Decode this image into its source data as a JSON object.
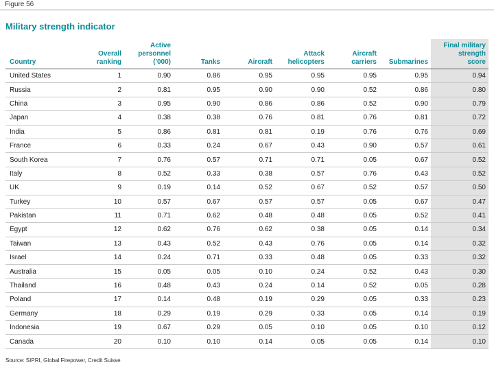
{
  "figure_label": "Figure 56",
  "title": "Military strength indicator",
  "columns": [
    "Country",
    "Overall\nranking",
    "Active\npersonnel\n('000)",
    "Tanks",
    "Aircraft",
    "Attack\nhelicopters",
    "Aircraft\ncarriers",
    "Submarines",
    "Final military\nstrength\nscore"
  ],
  "rows": [
    [
      "United States",
      "1",
      "0.90",
      "0.86",
      "0.95",
      "0.95",
      "0.95",
      "0.95",
      "0.94"
    ],
    [
      "Russia",
      "2",
      "0.81",
      "0.95",
      "0.90",
      "0.90",
      "0.52",
      "0.86",
      "0.80"
    ],
    [
      "China",
      "3",
      "0.95",
      "0.90",
      "0.86",
      "0.86",
      "0.52",
      "0.90",
      "0.79"
    ],
    [
      "Japan",
      "4",
      "0.38",
      "0.38",
      "0.76",
      "0.81",
      "0.76",
      "0.81",
      "0.72"
    ],
    [
      "India",
      "5",
      "0.86",
      "0.81",
      "0.81",
      "0.19",
      "0.76",
      "0.76",
      "0.69"
    ],
    [
      "France",
      "6",
      "0.33",
      "0.24",
      "0.67",
      "0.43",
      "0.90",
      "0.57",
      "0.61"
    ],
    [
      "South Korea",
      "7",
      "0.76",
      "0.57",
      "0.71",
      "0.71",
      "0.05",
      "0.67",
      "0.52"
    ],
    [
      "Italy",
      "8",
      "0.52",
      "0.33",
      "0.38",
      "0.57",
      "0.76",
      "0.43",
      "0.52"
    ],
    [
      "UK",
      "9",
      "0.19",
      "0.14",
      "0.52",
      "0.67",
      "0.52",
      "0.57",
      "0.50"
    ],
    [
      "Turkey",
      "10",
      "0.57",
      "0.67",
      "0.57",
      "0.57",
      "0.05",
      "0.67",
      "0.47"
    ],
    [
      "Pakistan",
      "11",
      "0.71",
      "0.62",
      "0.48",
      "0.48",
      "0.05",
      "0.52",
      "0.41"
    ],
    [
      "Egypt",
      "12",
      "0.62",
      "0.76",
      "0.62",
      "0.38",
      "0.05",
      "0.14",
      "0.34"
    ],
    [
      "Taiwan",
      "13",
      "0.43",
      "0.52",
      "0.43",
      "0.76",
      "0.05",
      "0.14",
      "0.32"
    ],
    [
      "Israel",
      "14",
      "0.24",
      "0.71",
      "0.33",
      "0.48",
      "0.05",
      "0.33",
      "0.32"
    ],
    [
      "Australia",
      "15",
      "0.05",
      "0.05",
      "0.10",
      "0.24",
      "0.52",
      "0.43",
      "0.30"
    ],
    [
      "Thailand",
      "16",
      "0.48",
      "0.43",
      "0.24",
      "0.14",
      "0.52",
      "0.05",
      "0.28"
    ],
    [
      "Poland",
      "17",
      "0.14",
      "0.48",
      "0.19",
      "0.29",
      "0.05",
      "0.33",
      "0.23"
    ],
    [
      "Germany",
      "18",
      "0.29",
      "0.19",
      "0.29",
      "0.33",
      "0.05",
      "0.14",
      "0.19"
    ],
    [
      "Indonesia",
      "19",
      "0.67",
      "0.29",
      "0.05",
      "0.10",
      "0.05",
      "0.10",
      "0.12"
    ],
    [
      "Canada",
      "20",
      "0.10",
      "0.10",
      "0.14",
      "0.05",
      "0.05",
      "0.14",
      "0.10"
    ]
  ],
  "source": "Source: SIPRI, Global Firepower, Credit Suisse",
  "colors": {
    "accent": "#0f8b96",
    "highlight_column": "#e2e2e2"
  }
}
